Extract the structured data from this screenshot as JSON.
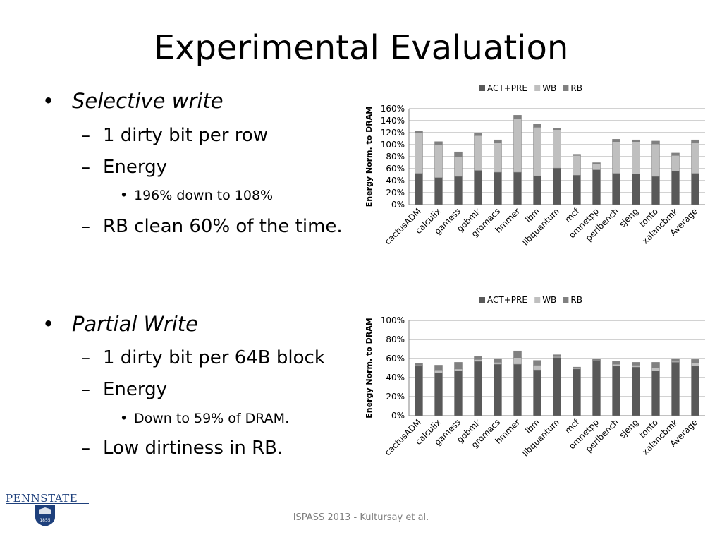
{
  "title": "Experimental Evaluation",
  "bullets": {
    "b1": "Selective write",
    "b1_1": "1 dirty bit per row",
    "b1_2": "Energy",
    "b1_2_1": "196% down to 108%",
    "b1_3": "RB clean 60% of the time.",
    "b2": "Partial Write",
    "b2_1": "1 dirty bit per 64B block",
    "b2_2": "Energy",
    "b2_2_1": "Down to 59% of DRAM.",
    "b2_3": "Low dirtiness in RB."
  },
  "footer": "ISPASS 2013 - Kultursay et al.",
  "logo": {
    "text": "PENNSTATE",
    "seal_text": "1855"
  },
  "colors": {
    "act_pre": "#595959",
    "wb": "#bfbfbf",
    "rb": "#808080",
    "logo": "#1e407c"
  },
  "chart_data": [
    {
      "type": "bar",
      "stacked": true,
      "title": "",
      "xlabel": "",
      "ylabel": "Energy Norm. to DRAM",
      "ylim": [
        0,
        160
      ],
      "yticks": [
        "0%",
        "20%",
        "40%",
        "60%",
        "80%",
        "100%",
        "120%",
        "140%",
        "160%"
      ],
      "grid": true,
      "legend_position": "top",
      "categories": [
        "cactusADM",
        "calculix",
        "gamess",
        "gobmk",
        "gromacs",
        "hmmer",
        "lbm",
        "libquantum",
        "mcf",
        "omnetpp",
        "perlbench",
        "sjeng",
        "tonto",
        "xalancbmk",
        "Average"
      ],
      "series": [
        {
          "name": "ACT+PRE",
          "values": [
            52,
            45,
            47,
            57,
            54,
            54,
            48,
            61,
            49,
            58,
            52,
            51,
            47,
            56,
            52
          ]
        },
        {
          "name": "WB",
          "values": [
            68,
            55,
            33,
            58,
            49,
            89,
            81,
            64,
            33,
            10,
            53,
            54,
            54,
            26,
            52
          ]
        },
        {
          "name": "RB",
          "values": [
            2,
            5,
            8,
            4,
            5,
            6,
            6,
            2,
            2,
            2,
            4,
            3,
            5,
            4,
            4
          ]
        }
      ]
    },
    {
      "type": "bar",
      "stacked": true,
      "title": "",
      "xlabel": "",
      "ylabel": "Energy Norm. to DRAM",
      "ylim": [
        0,
        100
      ],
      "yticks": [
        "0%",
        "20%",
        "40%",
        "60%",
        "80%",
        "100%"
      ],
      "grid": true,
      "legend_position": "top",
      "categories": [
        "cactusADM",
        "calculix",
        "gamess",
        "gobmk",
        "gromacs",
        "hmmer",
        "lbm",
        "libquantum",
        "mcf",
        "omnetpp",
        "perlbench",
        "sjeng",
        "tonto",
        "xalancbmk",
        "Average"
      ],
      "series": [
        {
          "name": "ACT+PRE",
          "values": [
            52,
            45,
            47,
            57,
            54,
            54,
            48,
            61,
            49,
            58,
            52,
            51,
            47,
            56,
            52
          ]
        },
        {
          "name": "WB",
          "values": [
            1,
            3,
            2,
            2,
            2,
            7,
            5,
            1,
            1,
            0.5,
            2,
            2,
            3,
            1,
            3
          ]
        },
        {
          "name": "RB",
          "values": [
            2,
            5,
            7,
            3,
            4,
            7,
            5,
            2,
            1,
            1,
            3,
            3,
            6,
            3,
            4
          ]
        }
      ]
    }
  ]
}
